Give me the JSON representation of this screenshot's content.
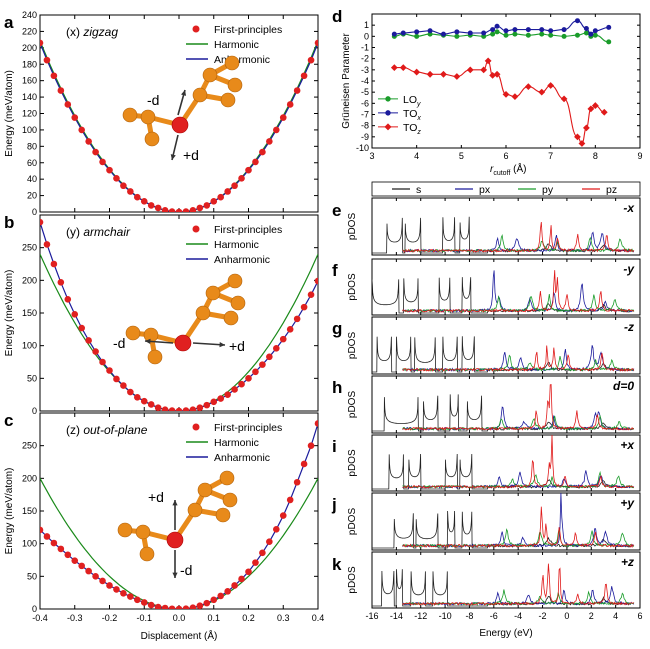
{
  "chart_data": [
    {
      "panel": "a",
      "type": "line",
      "title": "(x) zigzag",
      "xlabel": "",
      "ylabel": "Energy (meV/atom)",
      "xlim": [
        -0.4,
        0.4
      ],
      "ylim": [
        0,
        240
      ],
      "xticks": [
        -0.4,
        -0.3,
        -0.2,
        -0.1,
        0.0,
        0.1,
        0.2,
        0.3,
        0.4
      ],
      "yticks": [
        0,
        20,
        40,
        60,
        80,
        100,
        120,
        140,
        160,
        180,
        200,
        220,
        240
      ],
      "legend": [
        "First-principles",
        "Harmonic",
        "Anharmonic"
      ],
      "legend_position": "top-right",
      "curvature": 1303,
      "inset_labels": [
        "-d",
        "+d"
      ],
      "series": [
        {
          "name": "First-principles",
          "x": [
            -0.4,
            -0.38,
            -0.36,
            -0.34,
            -0.32,
            -0.3,
            -0.28,
            -0.26,
            -0.24,
            -0.22,
            -0.2,
            -0.18,
            -0.16,
            -0.14,
            -0.12,
            -0.1,
            -0.08,
            -0.06,
            -0.04,
            -0.02,
            0.0,
            0.02,
            0.04,
            0.06,
            0.08,
            0.1,
            0.12,
            0.14,
            0.16,
            0.18,
            0.2,
            0.22,
            0.24,
            0.26,
            0.28,
            0.3,
            0.32,
            0.34,
            0.36,
            0.38,
            0.4
          ],
          "y": [
            206,
            185,
            166,
            148,
            131,
            115,
            100,
            86,
            73,
            61,
            51,
            41,
            32,
            25,
            18,
            13,
            8,
            5,
            2,
            0.5,
            0,
            0.5,
            2,
            5,
            8,
            13,
            18,
            25,
            32,
            41,
            51,
            61,
            73,
            86,
            100,
            115,
            131,
            148,
            166,
            185,
            206
          ]
        }
      ]
    },
    {
      "panel": "b",
      "type": "line",
      "title": "(y) armchair",
      "xlabel": "",
      "ylabel": "Energy (meV/atom)",
      "xlim": [
        -0.4,
        0.4
      ],
      "ylim": [
        0,
        300
      ],
      "xticks": [
        -0.4,
        -0.3,
        -0.2,
        -0.1,
        0.0,
        0.1,
        0.2,
        0.3,
        0.4
      ],
      "yticks": [
        0,
        50,
        100,
        150,
        200,
        250,
        300
      ],
      "legend": [
        "First-principles",
        "Harmonic",
        "Anharmonic"
      ],
      "legend_position": "top-right",
      "curvature": 1500,
      "inset_labels": [
        "-d",
        "+d"
      ],
      "series": [
        {
          "name": "First-principles",
          "x": [
            -0.4,
            -0.38,
            -0.36,
            -0.34,
            -0.32,
            -0.3,
            -0.28,
            -0.26,
            -0.24,
            -0.22,
            -0.2,
            -0.18,
            -0.16,
            -0.14,
            -0.12,
            -0.1,
            -0.08,
            -0.06,
            -0.04,
            -0.02,
            0.0,
            0.02,
            0.04,
            0.06,
            0.08,
            0.1,
            0.12,
            0.14,
            0.16,
            0.18,
            0.2,
            0.22,
            0.24,
            0.26,
            0.28,
            0.3,
            0.32,
            0.34,
            0.36,
            0.38,
            0.4
          ],
          "y": [
            289,
            255,
            225,
            197,
            171,
            148,
            127,
            108,
            91,
            75,
            62,
            49,
            39,
            29,
            21,
            15,
            10,
            5,
            2,
            0.6,
            0,
            0.6,
            2,
            5,
            9,
            14,
            19,
            25,
            33,
            41,
            50,
            60,
            71,
            83,
            96,
            110,
            125,
            141,
            159,
            178,
            199
          ]
        }
      ]
    },
    {
      "panel": "c",
      "type": "line",
      "title": "(z) out-of-plane",
      "xlabel": "Displacement (Å)",
      "ylabel": "Energy (meV/atom)",
      "xlim": [
        -0.4,
        0.4
      ],
      "ylim": [
        0,
        300
      ],
      "xticks": [
        -0.4,
        -0.3,
        -0.2,
        -0.1,
        0.0,
        0.1,
        0.2,
        0.3,
        0.4
      ],
      "yticks": [
        0,
        50,
        100,
        150,
        200,
        250,
        300
      ],
      "legend": [
        "First-principles",
        "Harmonic",
        "Anharmonic"
      ],
      "legend_position": "top-right",
      "curvature": 1250,
      "inset_labels": [
        "+d",
        "-d"
      ],
      "series": [
        {
          "name": "First-principles",
          "x": [
            -0.4,
            -0.38,
            -0.36,
            -0.34,
            -0.32,
            -0.3,
            -0.28,
            -0.26,
            -0.24,
            -0.22,
            -0.2,
            -0.18,
            -0.16,
            -0.14,
            -0.12,
            -0.1,
            -0.08,
            -0.06,
            -0.04,
            -0.02,
            0.0,
            0.02,
            0.04,
            0.06,
            0.08,
            0.1,
            0.12,
            0.14,
            0.16,
            0.18,
            0.2,
            0.22,
            0.24,
            0.26,
            0.28,
            0.3,
            0.32,
            0.34,
            0.36,
            0.38,
            0.4
          ],
          "y": [
            121,
            111,
            101,
            92,
            83,
            74,
            66,
            58,
            50,
            43,
            36,
            30,
            24,
            19,
            14,
            10,
            6,
            3,
            1.5,
            0.4,
            0,
            0.5,
            2,
            5,
            9,
            14,
            20,
            27,
            36,
            46,
            57,
            71,
            86,
            103,
            122,
            143,
            167,
            194,
            222,
            250,
            284
          ]
        }
      ]
    },
    {
      "panel": "d",
      "type": "line",
      "xlabel": "r_cutoff (Å)",
      "ylabel": "Grüneisen Parameter",
      "xlim": [
        3,
        9
      ],
      "ylim": [
        -10,
        2
      ],
      "xticks": [
        3,
        4,
        5,
        6,
        7,
        8,
        9
      ],
      "yticks": [
        -10,
        -9,
        -8,
        -7,
        -6,
        -5,
        -4,
        -3,
        -2,
        -1,
        0,
        1,
        2
      ],
      "legend_position": "bottom-left",
      "series": [
        {
          "name": "LOy",
          "color": "#1a9c2a",
          "x": [
            3.5,
            3.7,
            4.0,
            4.3,
            4.6,
            4.9,
            5.2,
            5.5,
            5.7,
            5.8,
            6.0,
            6.2,
            6.5,
            6.8,
            7.0,
            7.3,
            7.6,
            7.8,
            7.9,
            8.0,
            8.3
          ],
          "y": [
            0.0,
            0.2,
            0.0,
            0.2,
            0.1,
            0.0,
            0.1,
            0.0,
            0.2,
            0.4,
            0.1,
            0.2,
            0.1,
            0.2,
            0.1,
            0.0,
            0.1,
            0.3,
            0.0,
            0.1,
            -0.5
          ]
        },
        {
          "name": "TOx",
          "color": "#1b1b9c",
          "x": [
            3.5,
            3.7,
            4.0,
            4.3,
            4.6,
            4.9,
            5.2,
            5.5,
            5.7,
            5.8,
            6.0,
            6.2,
            6.5,
            6.8,
            7.0,
            7.3,
            7.6,
            7.8,
            7.9,
            8.0,
            8.3
          ],
          "y": [
            0.2,
            0.3,
            0.4,
            0.5,
            0.2,
            0.4,
            0.3,
            0.3,
            0.6,
            0.9,
            0.5,
            0.6,
            0.6,
            0.6,
            0.5,
            0.6,
            1.4,
            0.7,
            0.2,
            0.5,
            0.8
          ]
        },
        {
          "name": "TOz",
          "color": "#e01a1a",
          "x": [
            3.5,
            3.7,
            4.0,
            4.3,
            4.6,
            4.9,
            5.2,
            5.5,
            5.6,
            5.7,
            5.8,
            6.0,
            6.2,
            6.5,
            6.8,
            7.0,
            7.3,
            7.6,
            7.7,
            7.8,
            7.9,
            8.0,
            8.2
          ],
          "y": [
            -2.8,
            -2.8,
            -3.2,
            -3.4,
            -3.4,
            -3.6,
            -3.0,
            -3.0,
            -2.2,
            -3.5,
            -3.4,
            -5.2,
            -5.4,
            -4.5,
            -5.0,
            -4.4,
            -5.6,
            -9.0,
            -9.6,
            -8.2,
            -6.5,
            -6.2,
            -6.8
          ]
        }
      ]
    },
    {
      "panel": "e-k",
      "type": "line",
      "xlabel": "Energy (eV)",
      "ylabel": "pDOS",
      "xlim": [
        -16,
        6
      ],
      "xticks": [
        -16,
        -14,
        -12,
        -10,
        -8,
        -6,
        -4,
        -2,
        0,
        2,
        4,
        6
      ],
      "legend": [
        "s",
        "px",
        "py",
        "pz"
      ],
      "legend_colors": [
        "#222222",
        "#1b1b9c",
        "#1a9c2a",
        "#e01a1a"
      ],
      "legend_position": "top",
      "rows": [
        {
          "panel": "e",
          "label": "-x"
        },
        {
          "panel": "f",
          "label": "-y"
        },
        {
          "panel": "g",
          "label": "-z"
        },
        {
          "panel": "h",
          "label": "d=0"
        },
        {
          "panel": "i",
          "label": "+x"
        },
        {
          "panel": "j",
          "label": "+y"
        },
        {
          "panel": "k",
          "label": "+z"
        }
      ]
    }
  ],
  "colors": {
    "points": "#e02020",
    "harmonic": "#1a8a1a",
    "anharmonic": "#1b1b9c",
    "atom_orange": "#e88a1a",
    "atom_red": "#e02020"
  }
}
